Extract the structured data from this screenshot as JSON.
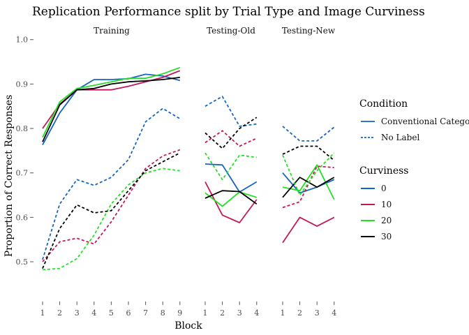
{
  "chart_data": {
    "type": "line",
    "title": "Replication Performance split by Trial Type and Image Curviness",
    "xlabel": "Block",
    "ylabel": "Proportion of Correct Responses",
    "ylim": [
      0.42,
      1.02
    ],
    "yticks": [
      0.5,
      0.6,
      0.7,
      0.8,
      0.9,
      1.0
    ],
    "ytick_labels": [
      "0.5",
      "0.6",
      "0.7",
      "0.8",
      "0.9",
      "1.0"
    ],
    "grid": false,
    "legend_position": "right",
    "legends": [
      {
        "title": "Condition",
        "items": [
          {
            "label": "Conventional Category",
            "linetype": "solid"
          },
          {
            "label": "No Label",
            "linetype": "dashed"
          }
        ]
      },
      {
        "title": "Curviness",
        "items": [
          {
            "label": "0",
            "color": "#1565C0"
          },
          {
            "label": "10",
            "color": "#C2185B"
          },
          {
            "label": "20",
            "color": "#22E022"
          },
          {
            "label": "30",
            "color": "#000000"
          }
        ]
      }
    ],
    "panels": [
      {
        "label": "Training",
        "x": [
          "1",
          "2",
          "3",
          "4",
          "5",
          "6",
          "7",
          "8",
          "9"
        ],
        "series": [
          {
            "condition": "Conventional Category",
            "curviness": "0",
            "values": [
              0.763,
              0.835,
              0.887,
              0.91,
              0.91,
              0.912,
              0.922,
              0.918,
              0.908
            ]
          },
          {
            "condition": "Conventional Category",
            "curviness": "10",
            "values": [
              0.8,
              0.855,
              0.887,
              0.887,
              0.887,
              0.895,
              0.905,
              0.915,
              0.93
            ]
          },
          {
            "condition": "Conventional Category",
            "curviness": "20",
            "values": [
              0.78,
              0.86,
              0.89,
              0.897,
              0.905,
              0.913,
              0.913,
              0.923,
              0.937
            ]
          },
          {
            "condition": "Conventional Category",
            "curviness": "30",
            "values": [
              0.77,
              0.853,
              0.887,
              0.89,
              0.9,
              0.905,
              0.907,
              0.91,
              0.915
            ]
          },
          {
            "condition": "No Label",
            "curviness": "0",
            "values": [
              0.505,
              0.63,
              0.685,
              0.672,
              0.69,
              0.73,
              0.815,
              0.845,
              0.822
            ]
          },
          {
            "condition": "No Label",
            "curviness": "10",
            "values": [
              0.5,
              0.545,
              0.553,
              0.54,
              0.59,
              0.65,
              0.71,
              0.738,
              0.752
            ]
          },
          {
            "condition": "No Label",
            "curviness": "20",
            "values": [
              0.482,
              0.485,
              0.507,
              0.56,
              0.63,
              0.673,
              0.7,
              0.71,
              0.705
            ]
          },
          {
            "condition": "No Label",
            "curviness": "30",
            "values": [
              0.485,
              0.575,
              0.628,
              0.61,
              0.615,
              0.66,
              0.705,
              0.725,
              0.745
            ]
          }
        ]
      },
      {
        "label": "Testing-Old",
        "x": [
          "1",
          "2",
          "3",
          "4"
        ],
        "series": [
          {
            "condition": "Conventional Category",
            "curviness": "0",
            "values": [
              0.72,
              0.718,
              0.657,
              0.68
            ]
          },
          {
            "condition": "Conventional Category",
            "curviness": "10",
            "values": [
              0.68,
              0.605,
              0.588,
              0.64
            ]
          },
          {
            "condition": "Conventional Category",
            "curviness": "20",
            "values": [
              0.655,
              0.625,
              0.657,
              0.645
            ]
          },
          {
            "condition": "Conventional Category",
            "curviness": "30",
            "values": [
              0.643,
              0.66,
              0.658,
              0.63
            ]
          },
          {
            "condition": "No Label",
            "curviness": "0",
            "values": [
              0.85,
              0.872,
              0.805,
              0.81
            ]
          },
          {
            "condition": "No Label",
            "curviness": "10",
            "values": [
              0.768,
              0.795,
              0.76,
              0.778
            ]
          },
          {
            "condition": "No Label",
            "curviness": "20",
            "values": [
              0.745,
              0.685,
              0.74,
              0.735
            ]
          },
          {
            "condition": "No Label",
            "curviness": "30",
            "values": [
              0.79,
              0.755,
              0.8,
              0.825
            ]
          }
        ]
      },
      {
        "label": "Testing-New",
        "x": [
          "1",
          "2",
          "3",
          "4"
        ],
        "series": [
          {
            "condition": "Conventional Category",
            "curviness": "0",
            "values": [
              0.7,
              0.655,
              0.668,
              0.685
            ]
          },
          {
            "condition": "Conventional Category",
            "curviness": "10",
            "values": [
              0.543,
              0.6,
              0.58,
              0.6
            ]
          },
          {
            "condition": "Conventional Category",
            "curviness": "20",
            "values": [
              0.668,
              0.66,
              0.718,
              0.64
            ]
          },
          {
            "condition": "Conventional Category",
            "curviness": "30",
            "values": [
              0.645,
              0.69,
              0.668,
              0.69
            ]
          },
          {
            "condition": "No Label",
            "curviness": "0",
            "values": [
              0.805,
              0.772,
              0.772,
              0.803
            ]
          },
          {
            "condition": "No Label",
            "curviness": "10",
            "values": [
              0.622,
              0.635,
              0.715,
              0.712
            ]
          },
          {
            "condition": "No Label",
            "curviness": "20",
            "values": [
              0.74,
              0.65,
              0.705,
              0.745
            ]
          },
          {
            "condition": "No Label",
            "curviness": "30",
            "values": [
              0.742,
              0.76,
              0.76,
              0.728
            ]
          }
        ]
      }
    ]
  }
}
